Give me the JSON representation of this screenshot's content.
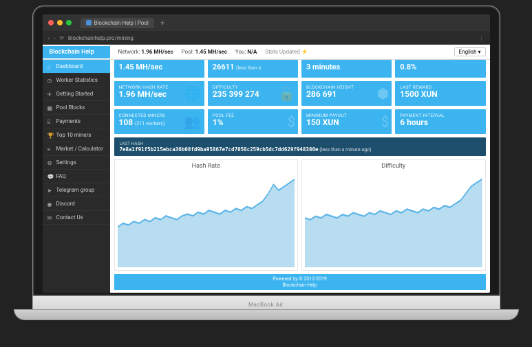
{
  "browser": {
    "tab_title": "Blockchain Help | Pool",
    "url": "blockchainhelp.pro/mining",
    "traffic_colors": [
      "#ff5f57",
      "#ffbd2e",
      "#28c940"
    ]
  },
  "header": {
    "brand": "Blockchain Help",
    "network_label": "Network:",
    "network_value": "1.96 MH/sec",
    "pool_label": "Pool:",
    "pool_value": "1.45 MH/sec",
    "you_label": "You:",
    "you_value": "N/A",
    "stats_updated": "Stats Updated ⚡",
    "language": "English"
  },
  "sidebar": {
    "items": [
      {
        "icon": "home",
        "label": "Dashboard",
        "active": true
      },
      {
        "icon": "gauge",
        "label": "Worker Statistics"
      },
      {
        "icon": "plane",
        "label": "Getting Started"
      },
      {
        "icon": "cubes",
        "label": "Pool Blocks"
      },
      {
        "icon": "card",
        "label": "Payments"
      },
      {
        "icon": "trophy",
        "label": "Top 10 miners"
      },
      {
        "icon": "chart",
        "label": "Market / Calculator"
      },
      {
        "icon": "gear",
        "label": "Settings"
      },
      {
        "icon": "chat",
        "label": "FAQ"
      },
      {
        "icon": "send",
        "label": "Telegram group"
      },
      {
        "icon": "discord",
        "label": "Discord"
      },
      {
        "icon": "mail",
        "label": "Contact Us"
      }
    ]
  },
  "cards": {
    "row0": [
      {
        "val": "1.45 MH/sec"
      },
      {
        "val": "26611",
        "sub": "(less than a"
      },
      {
        "val": "3 minutes"
      },
      {
        "val": "0.8%"
      }
    ],
    "row1": [
      {
        "lbl": "NETWORK HASH RATE",
        "val": "1.96 MH/sec",
        "icon": "🌐"
      },
      {
        "lbl": "DIFFICULTY",
        "val": "235 399 274",
        "icon": "🔓"
      },
      {
        "lbl": "BLOCKCHAIN HEIGHT",
        "val": "286 691",
        "icon": "⬢"
      },
      {
        "lbl": "LAST REWARD",
        "val": "1500 XUN"
      }
    ],
    "row2": [
      {
        "lbl": "CONNECTED MINERS",
        "val": "108",
        "sub": "(211 workers)",
        "icon": "👥"
      },
      {
        "lbl": "POOL FEE",
        "val": "1%",
        "icon": "$"
      },
      {
        "lbl": "MINIMUM PAYOUT",
        "val": "150 XUN",
        "icon": "$"
      },
      {
        "lbl": "PAYMENT INTERVAL",
        "val": "6 hours"
      }
    ]
  },
  "lasthash": {
    "label": "LAST HASH",
    "hash": "7e8a1f91f5b215ebca36b08fd9ba95867e7cd7058c259cb5dc7dd629f948380e",
    "ago": "(less than a minute ago)"
  },
  "charts": {
    "hashrate": {
      "title": "Hash Rate",
      "fill": "#b8ddf0",
      "stroke": "#5bb4e8",
      "points": [
        22,
        24,
        23,
        25,
        24,
        26,
        25,
        27,
        26,
        28,
        27,
        26,
        28,
        29,
        28,
        30,
        29,
        31,
        30,
        29,
        31,
        30,
        32,
        31,
        33,
        32,
        34,
        36,
        40,
        45,
        42,
        44,
        46,
        48
      ]
    },
    "difficulty": {
      "title": "Difficulty",
      "fill": "#b8ddf0",
      "stroke": "#5bb4e8",
      "points": [
        28,
        27,
        29,
        28,
        30,
        29,
        28,
        30,
        29,
        31,
        30,
        29,
        31,
        30,
        32,
        31,
        30,
        32,
        31,
        33,
        32,
        31,
        33,
        32,
        34,
        33,
        35,
        34,
        36,
        38,
        42,
        46,
        48,
        50
      ]
    }
  },
  "footer": {
    "line1": "Powered by © 2012-2019",
    "line2": "Blockchain Help"
  },
  "laptop_label": "MacBook Air",
  "dock_colors": [
    "#b0b0b0",
    "#4a90e2",
    "#2563eb",
    "#c0c0c0",
    "#0ea5e9",
    "#0891b2",
    "#a78bfa",
    "#ef4444",
    "#fff",
    "#fff",
    "#22c55e",
    "#f59e0b",
    "#fff",
    "#10b981",
    "#fbbf24",
    "#3b82f6",
    "#06b6d4",
    "#0ea5e9",
    "#6366f1",
    "#8b5cf6",
    "#1f2937",
    "#f59e0b",
    "#ef4444",
    "#22c55e",
    "#fbbf24",
    "#25d366",
    "#00aff0",
    "#3b82f6",
    "#06b6d4",
    "#8b5cf6",
    "#6b7280",
    "#9ca3af",
    "#d1d5db"
  ]
}
